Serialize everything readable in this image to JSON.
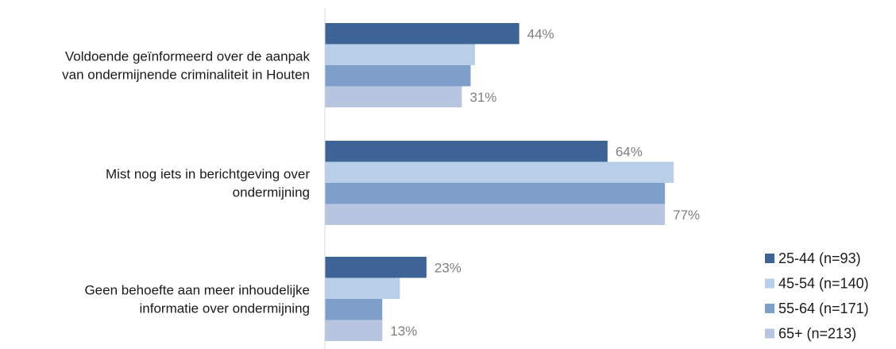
{
  "chart_data": {
    "type": "bar",
    "orientation": "horizontal",
    "categories": [
      "Voldoende geïnformeerd over de aanpak van ondermijnende criminaliteit in Houten",
      "Mist nog iets in berichtgeving over ondermijning",
      "Geen behoefte aan meer inhoudelijke informatie over ondermijning"
    ],
    "category_lines": [
      [
        "Voldoende geïnformeerd over de aanpak",
        "van ondermijnende criminaliteit in Houten"
      ],
      [
        "Mist nog iets in berichtgeving over",
        "ondermijning"
      ],
      [
        "Geen behoefte aan meer inhoudelijke",
        "informatie over ondermijning"
      ]
    ],
    "series": [
      {
        "name": "25-44 (n=93)",
        "color": "#3d6494",
        "values": [
          44,
          64,
          23
        ]
      },
      {
        "name": "45-54 (n=140)",
        "color": "#b9cfe9",
        "values": [
          34,
          79,
          17
        ]
      },
      {
        "name": "55-64 (n=171)",
        "color": "#7f9fcb",
        "values": [
          33,
          77,
          13
        ]
      },
      {
        "name": "65+ (n=213)",
        "color": "#b8c5e0",
        "values": [
          31,
          77,
          13
        ]
      }
    ],
    "data_labels": [
      {
        "category": 0,
        "series": 0,
        "text": "44%"
      },
      {
        "category": 0,
        "series": 3,
        "text": "31%"
      },
      {
        "category": 1,
        "series": 0,
        "text": "64%"
      },
      {
        "category": 1,
        "series": 3,
        "text": "77%"
      },
      {
        "category": 2,
        "series": 0,
        "text": "23%"
      },
      {
        "category": 2,
        "series": 3,
        "text": "13%"
      }
    ],
    "xlim": [
      0,
      100
    ],
    "grid": false,
    "legend_position": "bottom-right",
    "axis_color": "#d9d9d9",
    "data_label_color": "#7f7f7f"
  }
}
